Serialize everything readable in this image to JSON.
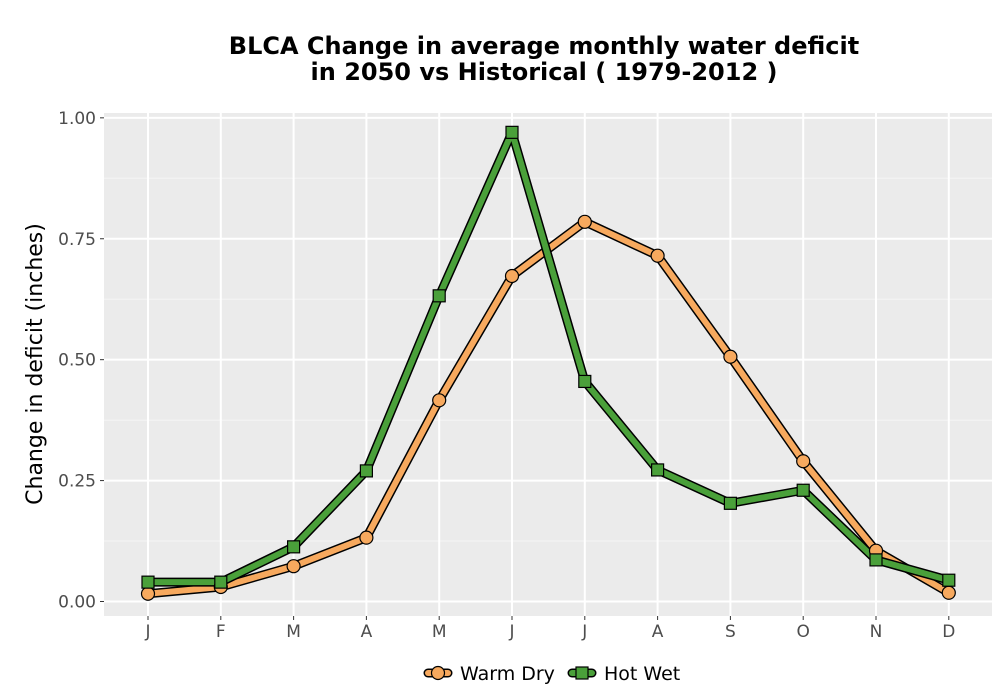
{
  "chart_data": {
    "type": "line",
    "title_line1": "BLCA  Change in average monthly water deficit",
    "title_line2": "in 2050 vs Historical ( 1979-2012 )",
    "xlabel": "",
    "ylabel": "Change in deficit (inches)",
    "categories": [
      "J",
      "F",
      "M",
      "A",
      "M",
      "J",
      "J",
      "A",
      "S",
      "O",
      "N",
      "D"
    ],
    "ylim": [
      -0.03,
      1.01
    ],
    "y_ticks": [
      0.0,
      0.25,
      0.5,
      0.75,
      1.0
    ],
    "y_tick_labels": [
      "0.00",
      "0.25",
      "0.50",
      "0.75",
      "1.00"
    ],
    "grid": true,
    "legend_position": "bottom",
    "series": [
      {
        "name": "Warm Dry",
        "marker": "circle",
        "color": "#f7a95e",
        "values": [
          0.016,
          0.03,
          0.073,
          0.132,
          0.416,
          0.673,
          0.785,
          0.715,
          0.506,
          0.29,
          0.105,
          0.018
        ]
      },
      {
        "name": "Hot Wet",
        "marker": "square",
        "color": "#4aa03a",
        "values": [
          0.04,
          0.04,
          0.113,
          0.27,
          0.632,
          0.97,
          0.455,
          0.272,
          0.203,
          0.23,
          0.086,
          0.044
        ]
      }
    ]
  }
}
